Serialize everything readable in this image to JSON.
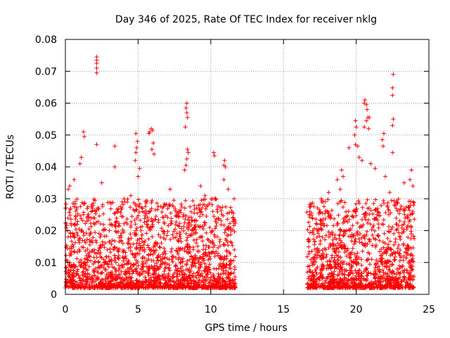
{
  "chart_data": {
    "type": "scatter",
    "title": "Day 346 of 2025, Rate Of TEC Index for receiver nklg",
    "xlabel": "GPS time / hours",
    "ylabel": "ROTI / TECUs",
    "xlim": [
      0,
      25
    ],
    "ylim": [
      0,
      0.08
    ],
    "x_ticks": [
      0,
      5,
      10,
      15,
      20,
      25
    ],
    "x_tick_labels": [
      "0",
      "5",
      "10",
      "15",
      "20",
      "25"
    ],
    "y_ticks": [
      0,
      0.01,
      0.02,
      0.03,
      0.04,
      0.05,
      0.06,
      0.07,
      0.08
    ],
    "y_tick_labels": [
      "0",
      "0.01",
      "0.02",
      "0.03",
      "0.04",
      "0.05",
      "0.06",
      "0.07",
      "0.08"
    ],
    "grid": true,
    "marker": "+",
    "color": "#ff0000",
    "series": [
      {
        "name": "ROTI",
        "description_ranges": [
          {
            "x_start": 0.0,
            "x_end": 11.7,
            "typical_min": 0.002,
            "typical_max": 0.03
          },
          {
            "x_start": 16.6,
            "x_end": 24.0,
            "typical_min": 0.002,
            "typical_max": 0.03
          }
        ],
        "points": [
          [
            2.15,
            0.0745
          ],
          [
            2.15,
            0.0735
          ],
          [
            2.15,
            0.0725
          ],
          [
            2.15,
            0.071
          ],
          [
            2.15,
            0.0695
          ],
          [
            1.25,
            0.051
          ],
          [
            1.3,
            0.0495
          ],
          [
            2.15,
            0.047
          ],
          [
            3.4,
            0.0465
          ],
          [
            3.4,
            0.04
          ],
          [
            4.85,
            0.0505
          ],
          [
            4.95,
            0.048
          ],
          [
            4.9,
            0.046
          ],
          [
            4.85,
            0.0445
          ],
          [
            4.8,
            0.042
          ],
          [
            5.1,
            0.0395
          ],
          [
            5.0,
            0.037
          ],
          [
            5.9,
            0.052
          ],
          [
            6.0,
            0.0515
          ],
          [
            5.8,
            0.051
          ],
          [
            5.75,
            0.0505
          ],
          [
            6.05,
            0.0475
          ],
          [
            5.95,
            0.0455
          ],
          [
            6.1,
            0.044
          ],
          [
            8.35,
            0.06
          ],
          [
            8.3,
            0.0585
          ],
          [
            8.35,
            0.057
          ],
          [
            8.4,
            0.0555
          ],
          [
            8.25,
            0.0525
          ],
          [
            8.4,
            0.0455
          ],
          [
            8.45,
            0.0445
          ],
          [
            8.35,
            0.0425
          ],
          [
            8.3,
            0.0405
          ],
          [
            8.2,
            0.039
          ],
          [
            10.2,
            0.0445
          ],
          [
            10.25,
            0.0435
          ],
          [
            10.95,
            0.042
          ],
          [
            10.9,
            0.0405
          ],
          [
            11.0,
            0.04
          ],
          [
            1.1,
            0.043
          ],
          [
            1.0,
            0.041
          ],
          [
            0.6,
            0.036
          ],
          [
            0.3,
            0.034
          ],
          [
            0.2,
            0.033
          ],
          [
            2.5,
            0.035
          ],
          [
            3.9,
            0.029
          ],
          [
            4.5,
            0.031
          ],
          [
            7.2,
            0.033
          ],
          [
            9.3,
            0.034
          ],
          [
            9.6,
            0.031
          ],
          [
            10.9,
            0.036
          ],
          [
            11.2,
            0.033
          ],
          [
            11.6,
            0.03
          ],
          [
            22.55,
            0.069
          ],
          [
            22.5,
            0.0648
          ],
          [
            22.5,
            0.0625
          ],
          [
            22.55,
            0.055
          ],
          [
            22.5,
            0.053
          ],
          [
            22.5,
            0.0445
          ],
          [
            20.6,
            0.061
          ],
          [
            20.55,
            0.06
          ],
          [
            20.7,
            0.0595
          ],
          [
            20.75,
            0.058
          ],
          [
            20.8,
            0.0555
          ],
          [
            20.9,
            0.0555
          ],
          [
            20.7,
            0.0545
          ],
          [
            20.55,
            0.0525
          ],
          [
            20.85,
            0.052
          ],
          [
            19.95,
            0.0545
          ],
          [
            20.0,
            0.0525
          ],
          [
            19.9,
            0.05
          ],
          [
            19.95,
            0.047
          ],
          [
            20.1,
            0.0465
          ],
          [
            21.9,
            0.0505
          ],
          [
            21.8,
            0.0485
          ],
          [
            21.85,
            0.0465
          ],
          [
            19.5,
            0.046
          ],
          [
            20.2,
            0.043
          ],
          [
            20.4,
            0.042
          ],
          [
            21.0,
            0.041
          ],
          [
            21.3,
            0.0395
          ],
          [
            19.0,
            0.039
          ],
          [
            19.1,
            0.037
          ],
          [
            18.7,
            0.036
          ],
          [
            23.8,
            0.039
          ],
          [
            23.7,
            0.036
          ],
          [
            23.9,
            0.034
          ],
          [
            23.3,
            0.035
          ],
          [
            17.6,
            0.03
          ],
          [
            18.1,
            0.032
          ],
          [
            18.9,
            0.033
          ],
          [
            22.0,
            0.037
          ],
          [
            22.3,
            0.032
          ],
          [
            16.8,
            0.025
          ],
          [
            17.0,
            0.024
          ],
          [
            23.95,
            0.028
          ]
        ]
      }
    ]
  }
}
